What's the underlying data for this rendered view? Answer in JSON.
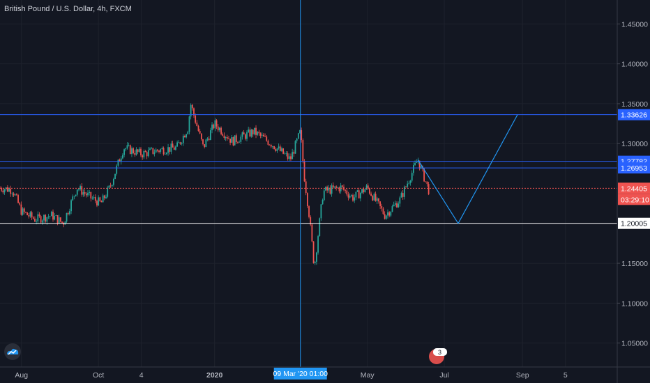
{
  "title": "British Pound / U.S. Dollar, 4h, FXCM",
  "colors": {
    "background": "#131722",
    "up": "#26a69a",
    "down": "#ef5350",
    "hline_blue": "#2962ff",
    "hline_red": "#ef5350",
    "hline_white": "#ffffff",
    "crosshair": "#2196f3",
    "projection": "#2196f3"
  },
  "icons": {
    "logo": "tradingview-cloud-icon",
    "event": "earnings-badge-icon"
  },
  "event_badge": {
    "count": "3"
  },
  "chart_data": {
    "type": "candlestick",
    "symbol": "GBPUSD",
    "interval": "4h",
    "source": "FXCM",
    "ylim": [
      1.02,
      1.48
    ],
    "y_ticks": [
      "1.45000",
      "1.40000",
      "1.35000",
      "1.30000",
      "1.15000",
      "1.10000",
      "1.05000"
    ],
    "x_ticks": [
      "Aug",
      "Oct",
      "4",
      "2020",
      "May",
      "Jul",
      "Sep",
      "5"
    ],
    "x_range": [
      "2019-07-15",
      "2020-11-15"
    ],
    "x_tick_dates": [
      "2019-08-01",
      "2019-10-01",
      "2019-11-04",
      "2020-01-01",
      "2020-05-01",
      "2020-07-01",
      "2020-09-01",
      "2020-10-05"
    ],
    "price_path": [
      [
        "2019-07-15",
        1.2445
      ],
      [
        "2019-07-25",
        1.242
      ],
      [
        "2019-08-01",
        1.215
      ],
      [
        "2019-08-12",
        1.205
      ],
      [
        "2019-08-25",
        1.21
      ],
      [
        "2019-09-03",
        1.2
      ],
      [
        "2019-09-14",
        1.245
      ],
      [
        "2019-09-25",
        1.232
      ],
      [
        "2019-10-03",
        1.225
      ],
      [
        "2019-10-10",
        1.245
      ],
      [
        "2019-10-21",
        1.295
      ],
      [
        "2019-11-04",
        1.287
      ],
      [
        "2019-11-18",
        1.292
      ],
      [
        "2019-12-02",
        1.295
      ],
      [
        "2019-12-11",
        1.32
      ],
      [
        "2019-12-13",
        1.35
      ],
      [
        "2019-12-23",
        1.295
      ],
      [
        "2020-01-01",
        1.325
      ],
      [
        "2020-01-15",
        1.303
      ],
      [
        "2020-02-01",
        1.315
      ],
      [
        "2020-02-15",
        1.3
      ],
      [
        "2020-03-01",
        1.28
      ],
      [
        "2020-03-09",
        1.315
      ],
      [
        "2020-03-12",
        1.26
      ],
      [
        "2020-03-16",
        1.21
      ],
      [
        "2020-03-20",
        1.145
      ],
      [
        "2020-03-27",
        1.24
      ],
      [
        "2020-04-10",
        1.245
      ],
      [
        "2020-04-20",
        1.232
      ],
      [
        "2020-05-01",
        1.245
      ],
      [
        "2020-05-15",
        1.21
      ],
      [
        "2020-05-27",
        1.23
      ],
      [
        "2020-06-10",
        1.28
      ],
      [
        "2020-06-19",
        1.24
      ]
    ],
    "horizontal_levels": [
      {
        "value": 1.33626,
        "label": "1.33626",
        "color": "#2962ff"
      },
      {
        "value": 1.27782,
        "label": "1.27782",
        "color": "#2962ff"
      },
      {
        "value": 1.26953,
        "label": "1.26953",
        "color": "#2962ff"
      },
      {
        "value": 1.24405,
        "label": "1.24405",
        "color": "#ef5350"
      },
      {
        "value": 1.20005,
        "label": "1.20005",
        "color": "#ffffff"
      }
    ],
    "countdown": "03:29:10",
    "crosshair": {
      "date": "2020-03-09",
      "label": "09 Mar '20   01:00"
    },
    "projection": [
      [
        "2020-06-10",
        1.28
      ],
      [
        "2020-07-12",
        1.2
      ],
      [
        "2020-08-28",
        1.3362
      ]
    ]
  }
}
